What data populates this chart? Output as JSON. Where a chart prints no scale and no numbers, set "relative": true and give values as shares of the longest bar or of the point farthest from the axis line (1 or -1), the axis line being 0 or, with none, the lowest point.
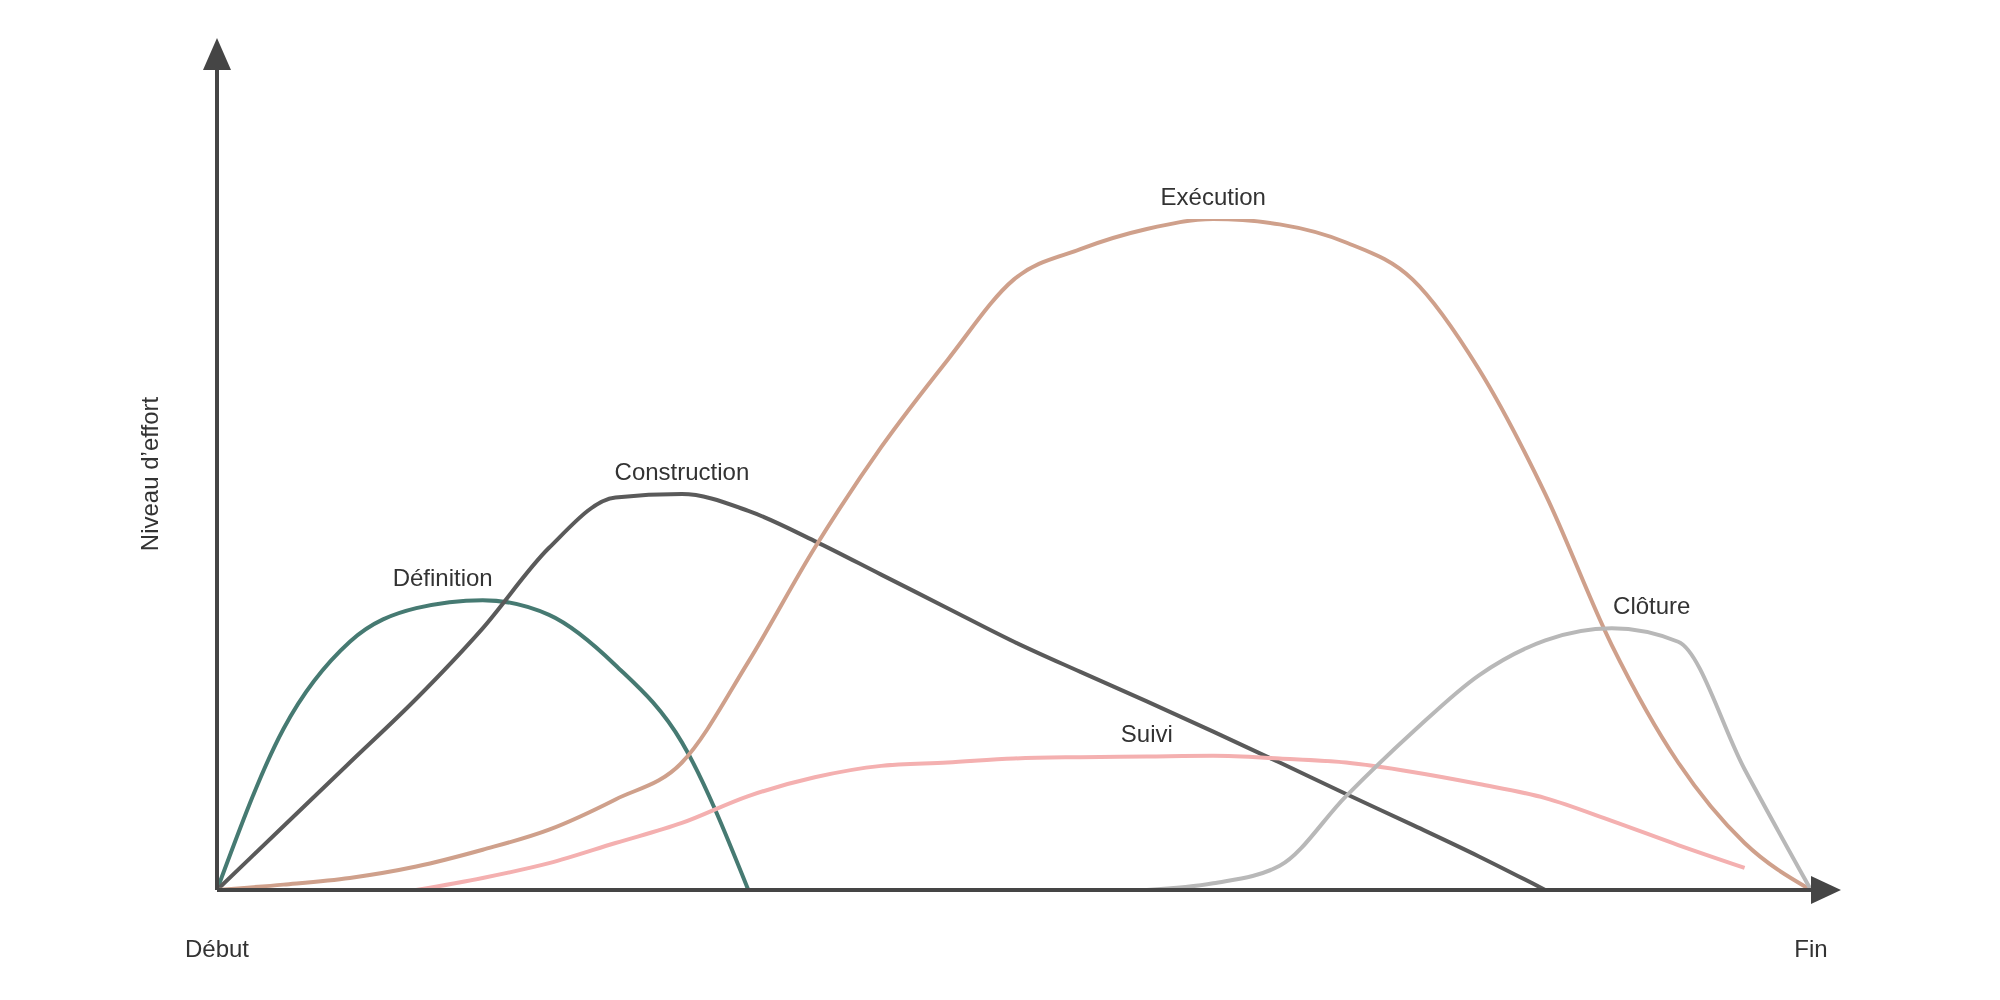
{
  "chart_data": {
    "type": "line",
    "relative": true,
    "ylabel": "Niveau d’effort",
    "categories": [
      "Début",
      null,
      null,
      null,
      null,
      null,
      null,
      null,
      null,
      null,
      null,
      null,
      null,
      null,
      null,
      null,
      null,
      null,
      null,
      null,
      null,
      null,
      null,
      null,
      "Fin"
    ],
    "grid": false,
    "legend": false,
    "marker": "none",
    "series": [
      {
        "name": "Définition",
        "color": "#467a72",
        "values": [
          0,
          0.24,
          0.37,
          0.42,
          0.432,
          0.41,
          0.335,
          0.22,
          0,
          null,
          null,
          null,
          null,
          null,
          null,
          null,
          null,
          null,
          null,
          null,
          null,
          null,
          null,
          null,
          null
        ]
      },
      {
        "name": "Construction",
        "color": "#5a5a5a",
        "values": [
          0,
          0.095,
          0.19,
          0.285,
          0.39,
          0.51,
          0.585,
          0.59,
          0.565,
          0.52,
          0.47,
          0.42,
          0.37,
          0.325,
          0.281,
          0.236,
          0.19,
          0.143,
          0.097,
          0.05,
          0,
          null,
          null,
          null,
          null
        ]
      },
      {
        "name": "Exécution",
        "color": "#cfa08b",
        "values": [
          0,
          0.008,
          0.018,
          0.035,
          0.06,
          0.09,
          0.135,
          0.19,
          0.34,
          0.51,
          0.66,
          0.79,
          0.91,
          0.955,
          0.985,
          1,
          0.992,
          0.965,
          0.91,
          0.776,
          0.59,
          0.365,
          0.19,
          0.07,
          0
        ]
      },
      {
        "name": "Suivi",
        "color": "#f4b0b0",
        "values": [
          null,
          null,
          null,
          0,
          0.018,
          0.04,
          0.07,
          0.1,
          0.14,
          0.168,
          0.185,
          0.19,
          0.196,
          0.198,
          0.199,
          0.2,
          0.196,
          0.19,
          0.176,
          0.158,
          0.137,
          0.103,
          0.067,
          0.033,
          null
        ]
      },
      {
        "name": "Clôture",
        "color": "#b8b8b8",
        "values": [
          null,
          null,
          null,
          null,
          null,
          null,
          null,
          null,
          null,
          null,
          null,
          null,
          null,
          null,
          0,
          0.01,
          0.036,
          0.14,
          0.235,
          0.32,
          0.372,
          0.39,
          0.37,
          0.18,
          0
        ]
      }
    ]
  }
}
